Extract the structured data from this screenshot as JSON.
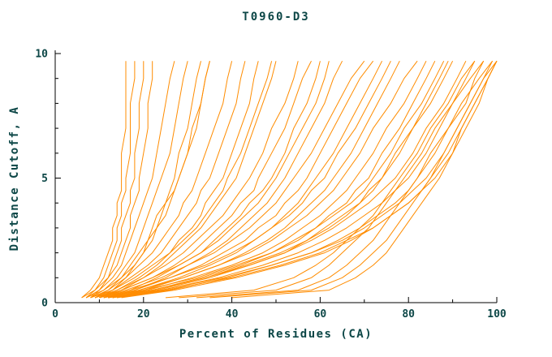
{
  "chart_data": {
    "type": "line",
    "title": "T0960-D3",
    "xlabel": "Percent of Residues (CA)",
    "ylabel": "Distance Cutoff, A",
    "xlim": [
      0,
      100
    ],
    "ylim": [
      0,
      10
    ],
    "x_ticks_major": [
      0,
      20,
      40,
      60,
      80,
      100
    ],
    "x_ticks_minor": [
      10,
      30,
      50,
      70,
      90
    ],
    "y_ticks_major": [
      0,
      5,
      10
    ],
    "y_ticks_minor": [
      1,
      2,
      3,
      4,
      6,
      7,
      8,
      9
    ],
    "grid": false,
    "legend": "none",
    "line_color": "#ff8c00",
    "axis_color": "#000000",
    "text_color": "#0d4747",
    "y_levels": [
      0.2,
      0.5,
      1,
      1.5,
      2,
      2.5,
      3,
      3.5,
      4,
      4.5,
      5,
      6,
      7,
      8,
      9,
      9.7
    ],
    "series": [
      {
        "x": [
          6,
          8,
          10,
          11,
          12,
          13,
          13,
          14,
          14,
          15,
          15,
          15,
          16,
          16,
          16,
          16
        ]
      },
      {
        "x": [
          7,
          9,
          11,
          12,
          13,
          14,
          14,
          15,
          15,
          16,
          16,
          17,
          17,
          17,
          18,
          18
        ]
      },
      {
        "x": [
          8,
          10,
          12,
          13,
          14,
          15,
          15,
          16,
          17,
          17,
          18,
          18,
          19,
          19,
          20,
          20
        ]
      },
      {
        "x": [
          6,
          9,
          12,
          14,
          15,
          16,
          17,
          17,
          18,
          19,
          19,
          20,
          21,
          21,
          22,
          22
        ]
      },
      {
        "x": [
          7,
          10,
          13,
          15,
          16,
          17,
          18,
          19,
          20,
          21,
          22,
          23,
          24,
          25,
          26,
          27
        ]
      },
      {
        "x": [
          8,
          11,
          14,
          16,
          18,
          19,
          20,
          21,
          22,
          23,
          24,
          26,
          27,
          28,
          29,
          30
        ]
      },
      {
        "x": [
          9,
          12,
          15,
          17,
          19,
          21,
          22,
          23,
          25,
          26,
          27,
          28,
          30,
          31,
          32,
          33
        ]
      },
      {
        "x": [
          7,
          11,
          15,
          18,
          20,
          22,
          23,
          25,
          26,
          27,
          28,
          30,
          32,
          33,
          34,
          35
        ]
      },
      {
        "x": [
          10,
          13,
          16,
          18,
          20,
          21,
          23,
          24,
          25,
          27,
          28,
          30,
          31,
          33,
          34,
          35
        ]
      },
      {
        "x": [
          8,
          12,
          16,
          19,
          22,
          24,
          26,
          28,
          29,
          31,
          32,
          34,
          36,
          38,
          39,
          40
        ]
      },
      {
        "x": [
          9,
          13,
          17,
          21,
          24,
          26,
          28,
          30,
          32,
          33,
          35,
          37,
          39,
          41,
          42,
          43
        ]
      },
      {
        "x": [
          10,
          14,
          19,
          23,
          26,
          28,
          31,
          33,
          34,
          36,
          38,
          40,
          42,
          44,
          45,
          46
        ]
      },
      {
        "x": [
          8,
          13,
          18,
          22,
          26,
          29,
          32,
          34,
          36,
          38,
          39,
          42,
          44,
          46,
          48,
          49
        ]
      },
      {
        "x": [
          11,
          15,
          20,
          24,
          27,
          30,
          33,
          35,
          37,
          39,
          41,
          43,
          45,
          47,
          49,
          50
        ]
      },
      {
        "x": [
          9,
          14,
          20,
          25,
          29,
          32,
          35,
          38,
          40,
          42,
          44,
          47,
          49,
          52,
          54,
          55
        ]
      },
      {
        "x": [
          10,
          15,
          22,
          27,
          31,
          34,
          37,
          40,
          42,
          45,
          46,
          49,
          52,
          54,
          56,
          58
        ]
      },
      {
        "x": [
          11,
          17,
          23,
          28,
          33,
          36,
          39,
          42,
          44,
          47,
          49,
          52,
          54,
          57,
          59,
          60
        ]
      },
      {
        "x": [
          9,
          15,
          22,
          28,
          33,
          37,
          40,
          43,
          46,
          48,
          50,
          53,
          56,
          59,
          61,
          62
        ]
      },
      {
        "x": [
          12,
          18,
          25,
          30,
          35,
          39,
          42,
          45,
          48,
          50,
          52,
          55,
          58,
          61,
          63,
          65
        ]
      },
      {
        "x": [
          10,
          16,
          24,
          30,
          36,
          40,
          44,
          47,
          50,
          52,
          54,
          58,
          61,
          64,
          67,
          70
        ]
      },
      {
        "x": [
          11,
          18,
          26,
          33,
          38,
          43,
          46,
          50,
          52,
          55,
          57,
          60,
          63,
          66,
          69,
          72
        ]
      },
      {
        "x": [
          12,
          19,
          28,
          35,
          41,
          45,
          49,
          52,
          55,
          57,
          59,
          63,
          66,
          69,
          72,
          74
        ]
      },
      {
        "x": [
          10,
          17,
          26,
          34,
          40,
          45,
          49,
          53,
          56,
          58,
          61,
          64,
          68,
          71,
          74,
          76
        ]
      },
      {
        "x": [
          13,
          20,
          29,
          37,
          43,
          48,
          52,
          55,
          58,
          61,
          63,
          67,
          70,
          73,
          76,
          78
        ]
      },
      {
        "x": [
          11,
          19,
          29,
          37,
          44,
          49,
          53,
          57,
          60,
          63,
          65,
          69,
          72,
          76,
          79,
          82
        ]
      },
      {
        "x": [
          12,
          21,
          31,
          40,
          47,
          52,
          56,
          60,
          63,
          66,
          68,
          72,
          75,
          79,
          82,
          84
        ]
      },
      {
        "x": [
          13,
          22,
          33,
          42,
          49,
          54,
          59,
          62,
          66,
          68,
          71,
          74,
          78,
          81,
          84,
          86
        ]
      },
      {
        "x": [
          11,
          20,
          32,
          41,
          49,
          55,
          59,
          63,
          67,
          70,
          72,
          76,
          79,
          83,
          86,
          88
        ]
      },
      {
        "x": [
          14,
          23,
          35,
          44,
          52,
          57,
          62,
          66,
          69,
          72,
          74,
          78,
          81,
          85,
          88,
          90
        ]
      },
      {
        "x": [
          12,
          22,
          34,
          43,
          51,
          57,
          61,
          65,
          69,
          71,
          74,
          77,
          81,
          84,
          87,
          89
        ]
      },
      {
        "x": [
          12,
          22,
          34,
          44,
          52,
          58,
          63,
          67,
          71,
          74,
          77,
          81,
          84,
          88,
          91,
          93
        ]
      },
      {
        "x": [
          13,
          24,
          37,
          47,
          55,
          61,
          66,
          70,
          74,
          77,
          80,
          84,
          87,
          90,
          93,
          95
        ]
      },
      {
        "x": [
          14,
          26,
          39,
          49,
          58,
          64,
          69,
          73,
          77,
          80,
          82,
          86,
          89,
          93,
          95,
          97
        ]
      },
      {
        "x": [
          12,
          24,
          38,
          49,
          58,
          65,
          70,
          74,
          78,
          81,
          84,
          88,
          91,
          94,
          97,
          99
        ]
      },
      {
        "x": [
          15,
          27,
          41,
          52,
          61,
          67,
          72,
          76,
          80,
          83,
          85,
          89,
          92,
          95,
          98,
          100
        ]
      },
      {
        "x": [
          13,
          25,
          40,
          51,
          60,
          66,
          72,
          76,
          80,
          83,
          86,
          90,
          93,
          96,
          98,
          100
        ]
      },
      {
        "x": [
          28,
          50,
          58,
          62,
          65,
          68,
          71,
          73,
          75,
          77,
          79,
          83,
          86,
          90,
          94,
          97
        ]
      },
      {
        "x": [
          32,
          55,
          62,
          66,
          69,
          72,
          74,
          76,
          78,
          80,
          82,
          85,
          89,
          92,
          96,
          99
        ]
      },
      {
        "x": [
          25,
          45,
          54,
          59,
          63,
          66,
          69,
          72,
          74,
          76,
          78,
          82,
          85,
          89,
          92,
          95
        ]
      },
      {
        "x": [
          35,
          58,
          65,
          69,
          72,
          75,
          77,
          79,
          81,
          83,
          85,
          88,
          91,
          94,
          97,
          100
        ]
      },
      {
        "x": [
          40,
          62,
          68,
          72,
          75,
          77,
          79,
          81,
          83,
          85,
          87,
          90,
          92,
          95,
          98,
          100
        ]
      }
    ]
  }
}
